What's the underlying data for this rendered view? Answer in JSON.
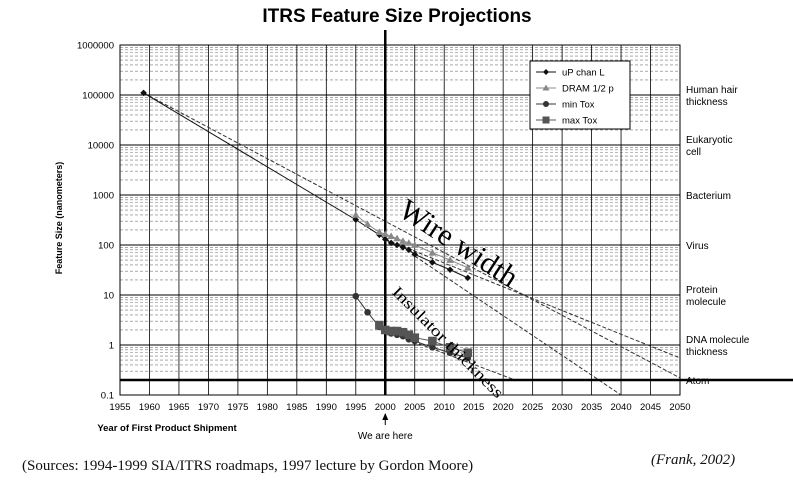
{
  "chart_data": {
    "type": "scatter",
    "title": "ITRS Feature Size Projections",
    "xlabel": "Year of First Product Shipment",
    "ylabel": "Feature Size (nanometers)",
    "xlim": [
      1955,
      2050
    ],
    "ylim": [
      0.1,
      1000000
    ],
    "yscale": "log",
    "grid": true,
    "legend_position": "top-right",
    "x_ticks": [
      "1955",
      "1960",
      "1965",
      "1970",
      "1975",
      "1980",
      "1985",
      "1990",
      "1995",
      "2000",
      "2005",
      "2010",
      "2015",
      "2020",
      "2025",
      "2030",
      "2035",
      "2040",
      "2045",
      "2050"
    ],
    "y_ticks": [
      "0.1",
      "1",
      "10",
      "100",
      "1000",
      "10000",
      "100000",
      "1000000"
    ],
    "series": [
      {
        "name": "uP chan L",
        "marker": "diamond",
        "color": "#111111",
        "x": [
          1959,
          1995,
          1999,
          2000,
          2001,
          2002,
          2003,
          2004,
          2005,
          2008,
          2011,
          2014
        ],
        "y": [
          110000,
          320,
          160,
          130,
          110,
          100,
          90,
          80,
          65,
          45,
          32,
          22
        ]
      },
      {
        "name": "DRAM 1/2 p",
        "marker": "triangle",
        "color": "#888888",
        "x": [
          1995,
          1997,
          1999,
          2000,
          2001,
          2002,
          2003,
          2004,
          2005,
          2008,
          2011,
          2014
        ],
        "y": [
          400,
          260,
          180,
          165,
          150,
          135,
          120,
          110,
          100,
          70,
          50,
          35
        ]
      },
      {
        "name": "min Tox",
        "marker": "circle",
        "color": "#333333",
        "x": [
          1995,
          1997,
          1999,
          2000,
          2001,
          2002,
          2003,
          2004,
          2005,
          2008,
          2011,
          2014
        ],
        "y": [
          9.5,
          4.5,
          2.3,
          1.9,
          1.7,
          1.6,
          1.5,
          1.3,
          1.2,
          0.9,
          0.7,
          0.55
        ]
      },
      {
        "name": "max Tox",
        "marker": "square",
        "color": "#555555",
        "x": [
          1999,
          2000,
          2001,
          2002,
          2003,
          2004,
          2005,
          2008,
          2011,
          2014
        ],
        "y": [
          2.5,
          2.0,
          1.9,
          1.9,
          1.8,
          1.6,
          1.4,
          1.2,
          0.9,
          0.7
        ]
      }
    ],
    "trend_lines": [
      {
        "name": "wire-trend-long",
        "x": [
          1959,
          2050
        ],
        "y": [
          110000,
          0.22
        ]
      },
      {
        "name": "wire-trend-2",
        "x": [
          2000,
          2050
        ],
        "y": [
          130,
          0.55
        ]
      },
      {
        "name": "wire-trend-3",
        "x": [
          2005,
          2040
        ],
        "y": [
          60,
          0.1
        ]
      },
      {
        "name": "insulator-trend",
        "x": [
          2000,
          2022
        ],
        "y": [
          1.9,
          0.2
        ]
      }
    ],
    "vertical_marker": {
      "x": 2000,
      "label": "We are here"
    },
    "reference_line": {
      "y": 0.2,
      "label": "Atom"
    },
    "reference_labels": [
      {
        "y": 100000,
        "line1": "Human hair",
        "line2": "thickness"
      },
      {
        "y": 10000,
        "line1": "Eukaryotic",
        "line2": "cell"
      },
      {
        "y": 1000,
        "line1": "Bacterium",
        "line2": ""
      },
      {
        "y": 100,
        "line1": "Virus",
        "line2": ""
      },
      {
        "y": 10,
        "line1": "Protein",
        "line2": "molecule"
      },
      {
        "y": 1,
        "line1": "DNA molecule",
        "line2": "thickness"
      },
      {
        "y": 0.2,
        "line1": "Atom",
        "line2": ""
      }
    ],
    "annotations": [
      {
        "text": "Wire width",
        "x": 2002,
        "y": 400,
        "angle": 33
      },
      {
        "text": "Insulator thickness",
        "x": 2001,
        "y": 11,
        "angle": 45
      }
    ]
  },
  "footer": {
    "sources": "(Sources: 1994-1999 SIA/ITRS roadmaps, 1997 lecture by Gordon Moore)",
    "credit": "(Frank, 2002)"
  }
}
